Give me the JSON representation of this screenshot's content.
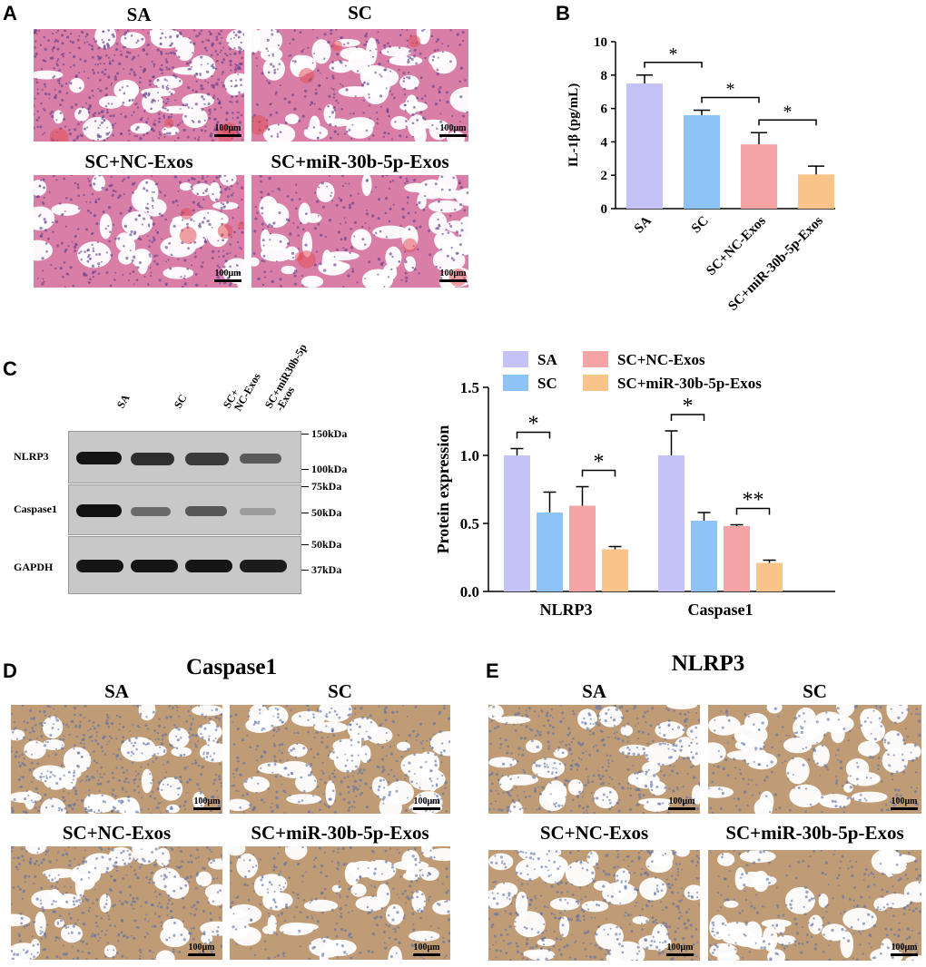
{
  "panels": {
    "A": {
      "label": "A",
      "images": [
        {
          "title": "SA",
          "scale": "100μm"
        },
        {
          "title": "SC",
          "scale": "100μm"
        },
        {
          "title": "SC+NC-Exos",
          "scale": "100μm"
        },
        {
          "title": "SC+miR-30b-5p-Exos",
          "scale": "100μm"
        }
      ]
    },
    "B": {
      "label": "B"
    },
    "C": {
      "label": "C",
      "blot": {
        "lanes": [
          "SA",
          "SC",
          "SC+\nNC-Exos",
          "SC+miR30b-5p\n-Exos"
        ],
        "rows": [
          "NLRP3",
          "Caspase1",
          "GAPDH"
        ],
        "markers": [
          "150kDa",
          "100kDa",
          "75kDa",
          "50kDa",
          "50kDa",
          "37kDa"
        ]
      }
    },
    "D": {
      "label": "D",
      "title": "Caspase1",
      "images": [
        {
          "title": "SA",
          "scale": "100μm"
        },
        {
          "title": "SC",
          "scale": "100μm"
        },
        {
          "title": "SC+NC-Exos",
          "scale": "100μm"
        },
        {
          "title": "SC+miR-30b-5p-Exos",
          "scale": "100μm"
        }
      ]
    },
    "E": {
      "label": "E",
      "title": "NLRP3",
      "images": [
        {
          "title": "SA",
          "scale": "100μm"
        },
        {
          "title": "SC",
          "scale": "100μm"
        },
        {
          "title": "SC+NC-Exos",
          "scale": "100μm"
        },
        {
          "title": "SC+miR-30b-5p-Exos",
          "scale": "100μm"
        }
      ]
    }
  },
  "colors": {
    "SA": "#c4c2f7",
    "SC": "#8ec3f7",
    "SC+NC-Exos": "#f6a3a6",
    "SC+miR-30b-5p-Exos": "#f8c48a",
    "he_stain": "#d46a95",
    "ihc_stain": "#c9a27a"
  },
  "chart_data": [
    {
      "type": "bar",
      "categories": [
        "SA",
        "SC",
        "SC+NC-Exos",
        "SC+miR-30b-5p-Exos"
      ],
      "values": [
        7.5,
        5.6,
        3.85,
        2.05
      ],
      "errors": [
        0.5,
        0.3,
        0.7,
        0.5
      ],
      "ylabel": "IL-1β (pg/mL)",
      "ylim": [
        0,
        10
      ],
      "yticks": [
        "0",
        "2",
        "4",
        "6",
        "8",
        "10"
      ],
      "significance": [
        {
          "between": [
            "SA",
            "SC"
          ],
          "label": "*"
        },
        {
          "between": [
            "SC",
            "SC+NC-Exos"
          ],
          "label": "*"
        },
        {
          "between": [
            "SC+NC-Exos",
            "SC+miR-30b-5p-Exos"
          ],
          "label": "*"
        }
      ]
    },
    {
      "type": "bar",
      "categories": [
        "NLRP3",
        "Caspase1"
      ],
      "series": [
        {
          "name": "SA",
          "values": [
            1.0,
            1.0
          ],
          "errors": [
            0.05,
            0.18
          ]
        },
        {
          "name": "SC",
          "values": [
            0.58,
            0.52
          ],
          "errors": [
            0.15,
            0.06
          ]
        },
        {
          "name": "SC+NC-Exos",
          "values": [
            0.63,
            0.48
          ],
          "errors": [
            0.14,
            0.01
          ]
        },
        {
          "name": "SC+miR-30b-5p-Exos",
          "values": [
            0.31,
            0.21
          ],
          "errors": [
            0.02,
            0.02
          ]
        }
      ],
      "ylabel": "Protein expression",
      "ylim": [
        0,
        1.5
      ],
      "yticks": [
        "0.0",
        "0.5",
        "1.0",
        "1.5"
      ],
      "legend": "top",
      "significance": [
        {
          "category": "NLRP3",
          "between": [
            "SA",
            "SC"
          ],
          "label": "*"
        },
        {
          "category": "NLRP3",
          "between": [
            "SC+NC-Exos",
            "SC+miR-30b-5p-Exos"
          ],
          "label": "*"
        },
        {
          "category": "Caspase1",
          "between": [
            "SA",
            "SC"
          ],
          "label": "*"
        },
        {
          "category": "Caspase1",
          "between": [
            "SC+NC-Exos",
            "SC+miR-30b-5p-Exos"
          ],
          "label": "**"
        }
      ]
    }
  ]
}
